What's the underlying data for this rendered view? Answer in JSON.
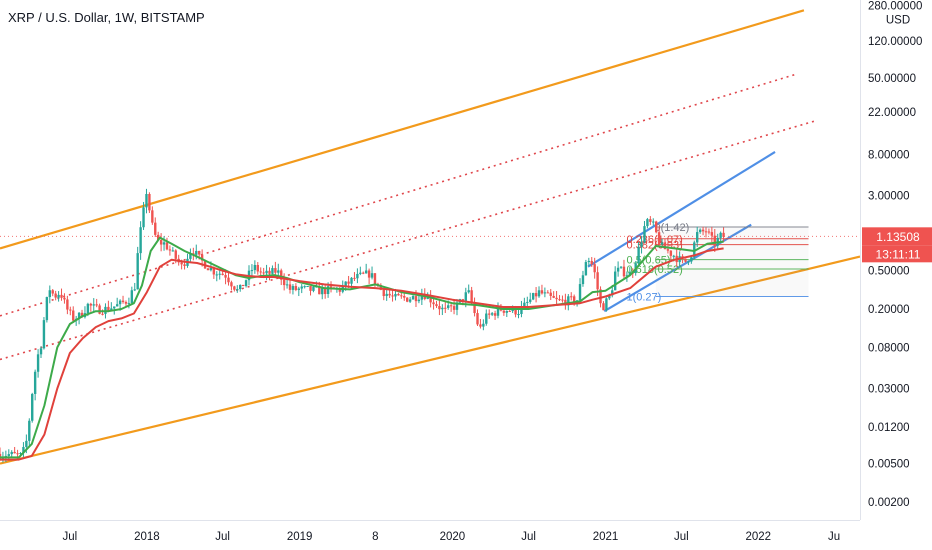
{
  "header": {
    "title": "XRP / U.S. Dollar, 1W, BITSTAMP"
  },
  "colors": {
    "channel": "#f29a1c",
    "dotted": "#e0474c",
    "ma_fast": "#3daa4a",
    "ma_slow": "#e0413b",
    "candle_up": "#26a69a",
    "candle_down": "#ef5350",
    "trend": "#4f8fe6",
    "price_tag": "#ef5350",
    "fib_gray": "#787b86",
    "fib_red": "#e0413b",
    "fib_green": "#4caf50",
    "fib_teal": "#089981",
    "fib_blue": "#4f8fe6"
  },
  "chart_data": {
    "type": "candlestick",
    "title": "XRP / U.S. Dollar, 1W, BITSTAMP",
    "y_scale": "log",
    "y_unit": "USD",
    "ylim": [
      0.0013,
      320
    ],
    "xlim": [
      "2017-01-15",
      "2022-09-01"
    ],
    "grid": false,
    "y_ticks": [
      "280.00000",
      "120.00000",
      "50.00000",
      "22.00000",
      "8.00000",
      "3.00000",
      "0.50000",
      "0.20000",
      "0.08000",
      "0.03000",
      "0.01200",
      "0.00500",
      "0.00200"
    ],
    "y_tick_values": [
      280,
      120,
      50,
      22,
      8,
      3,
      0.5,
      0.2,
      0.08,
      0.03,
      0.012,
      0.005,
      0.002
    ],
    "x_ticks": [
      {
        "label": "Jul",
        "date": "2017-07-01"
      },
      {
        "label": "2018",
        "date": "2018-01-01"
      },
      {
        "label": "Jul",
        "date": "2018-07-01"
      },
      {
        "label": "2019",
        "date": "2019-01-01"
      },
      {
        "label": "8",
        "date": "2019-07-01"
      },
      {
        "label": "2020",
        "date": "2020-01-01"
      },
      {
        "label": "Jul",
        "date": "2020-07-01"
      },
      {
        "label": "2021",
        "date": "2021-01-01"
      },
      {
        "label": "Jul",
        "date": "2021-07-01"
      },
      {
        "label": "2022",
        "date": "2022-01-01"
      },
      {
        "label": "Ju",
        "date": "2022-07-01"
      }
    ],
    "last_price": {
      "value": 1.13508,
      "label": "1.13508",
      "countdown": "13:11:11"
    },
    "price_path": [
      [
        "2017-01-15",
        0.0063
      ],
      [
        "2017-02-15",
        0.0062
      ],
      [
        "2017-03-15",
        0.006
      ],
      [
        "2017-03-28",
        0.009
      ],
      [
        "2017-04-10",
        0.03
      ],
      [
        "2017-04-20",
        0.06
      ],
      [
        "2017-05-01",
        0.09
      ],
      [
        "2017-05-10",
        0.2
      ],
      [
        "2017-05-20",
        0.33
      ],
      [
        "2017-06-01",
        0.27
      ],
      [
        "2017-06-15",
        0.3
      ],
      [
        "2017-07-01",
        0.2
      ],
      [
        "2017-07-15",
        0.16
      ],
      [
        "2017-08-01",
        0.17
      ],
      [
        "2017-08-20",
        0.22
      ],
      [
        "2017-09-10",
        0.2
      ],
      [
        "2017-10-01",
        0.2
      ],
      [
        "2017-11-01",
        0.22
      ],
      [
        "2017-11-25",
        0.25
      ],
      [
        "2017-12-10",
        0.35
      ],
      [
        "2017-12-20",
        1.0
      ],
      [
        "2018-01-01",
        2.2
      ],
      [
        "2018-01-07",
        3.3
      ],
      [
        "2018-01-20",
        1.5
      ],
      [
        "2018-02-01",
        1.0
      ],
      [
        "2018-02-20",
        0.95
      ],
      [
        "2018-03-15",
        0.7
      ],
      [
        "2018-04-01",
        0.55
      ],
      [
        "2018-04-25",
        0.85
      ],
      [
        "2018-05-15",
        0.65
      ],
      [
        "2018-06-15",
        0.5
      ],
      [
        "2018-07-15",
        0.45
      ],
      [
        "2018-08-15",
        0.3
      ],
      [
        "2018-09-20",
        0.55
      ],
      [
        "2018-10-15",
        0.45
      ],
      [
        "2018-11-15",
        0.5
      ],
      [
        "2018-12-15",
        0.32
      ],
      [
        "2019-01-15",
        0.32
      ],
      [
        "2019-03-01",
        0.31
      ],
      [
        "2019-04-15",
        0.32
      ],
      [
        "2019-05-20",
        0.42
      ],
      [
        "2019-06-25",
        0.47
      ],
      [
        "2019-07-20",
        0.32
      ],
      [
        "2019-08-20",
        0.26
      ],
      [
        "2019-10-01",
        0.26
      ],
      [
        "2019-11-01",
        0.29
      ],
      [
        "2019-12-20",
        0.19
      ],
      [
        "2020-01-20",
        0.22
      ],
      [
        "2020-02-15",
        0.3
      ],
      [
        "2020-03-13",
        0.12
      ],
      [
        "2020-03-25",
        0.16
      ],
      [
        "2020-05-01",
        0.2
      ],
      [
        "2020-06-15",
        0.19
      ],
      [
        "2020-08-01",
        0.3
      ],
      [
        "2020-09-15",
        0.24
      ],
      [
        "2020-11-01",
        0.25
      ],
      [
        "2020-11-24",
        0.7
      ],
      [
        "2020-12-10",
        0.55
      ],
      [
        "2020-12-29",
        0.2
      ],
      [
        "2021-01-20",
        0.28
      ],
      [
        "2021-02-01",
        0.5
      ],
      [
        "2021-02-15",
        0.5
      ],
      [
        "2021-03-10",
        0.45
      ],
      [
        "2021-04-05",
        1.1
      ],
      [
        "2021-04-14",
        1.6
      ],
      [
        "2021-05-01",
        1.5
      ],
      [
        "2021-05-20",
        0.9
      ],
      [
        "2021-06-15",
        0.75
      ],
      [
        "2021-07-15",
        0.6
      ],
      [
        "2021-08-01",
        0.75
      ],
      [
        "2021-08-15",
        1.2
      ],
      [
        "2021-09-05",
        1.3
      ],
      [
        "2021-09-25",
        0.95
      ],
      [
        "2021-10-10",
        1.13508
      ]
    ],
    "series": [
      {
        "kind": "moving_average",
        "points": [
          [
            "2017-01-15",
            0.0058
          ],
          [
            "2017-03-01",
            0.0058
          ],
          [
            "2017-04-01",
            0.008
          ],
          [
            "2017-05-01",
            0.02
          ],
          [
            "2017-06-01",
            0.08
          ],
          [
            "2017-07-01",
            0.14
          ],
          [
            "2017-08-01",
            0.17
          ],
          [
            "2017-09-01",
            0.19
          ],
          [
            "2017-10-01",
            0.19
          ],
          [
            "2017-11-01",
            0.2
          ],
          [
            "2017-12-01",
            0.23
          ],
          [
            "2017-12-20",
            0.35
          ],
          [
            "2018-01-10",
            0.8
          ],
          [
            "2018-02-01",
            1.1
          ],
          [
            "2018-03-01",
            0.95
          ],
          [
            "2018-04-01",
            0.8
          ],
          [
            "2018-05-01",
            0.7
          ],
          [
            "2018-06-01",
            0.6
          ],
          [
            "2018-07-01",
            0.52
          ],
          [
            "2018-08-01",
            0.45
          ],
          [
            "2018-09-01",
            0.42
          ],
          [
            "2018-10-01",
            0.44
          ],
          [
            "2018-11-01",
            0.45
          ],
          [
            "2018-12-01",
            0.42
          ],
          [
            "2019-01-01",
            0.38
          ],
          [
            "2019-03-01",
            0.33
          ],
          [
            "2019-05-01",
            0.32
          ],
          [
            "2019-07-01",
            0.36
          ],
          [
            "2019-09-01",
            0.3
          ],
          [
            "2019-11-01",
            0.27
          ],
          [
            "2020-01-01",
            0.23
          ],
          [
            "2020-03-01",
            0.22
          ],
          [
            "2020-05-01",
            0.2
          ],
          [
            "2020-07-01",
            0.2
          ],
          [
            "2020-09-01",
            0.22
          ],
          [
            "2020-11-01",
            0.24
          ],
          [
            "2020-12-01",
            0.3
          ],
          [
            "2021-01-01",
            0.31
          ],
          [
            "2021-03-01",
            0.45
          ],
          [
            "2021-05-01",
            0.9
          ],
          [
            "2021-06-15",
            0.85
          ],
          [
            "2021-08-01",
            0.8
          ],
          [
            "2021-09-01",
            0.95
          ],
          [
            "2021-10-10",
            1.0
          ]
        ]
      },
      {
        "kind": "moving_average",
        "points": [
          [
            "2017-01-15",
            0.0055
          ],
          [
            "2017-03-01",
            0.0055
          ],
          [
            "2017-04-01",
            0.006
          ],
          [
            "2017-05-01",
            0.01
          ],
          [
            "2017-06-01",
            0.03
          ],
          [
            "2017-07-01",
            0.07
          ],
          [
            "2017-08-01",
            0.1
          ],
          [
            "2017-09-01",
            0.13
          ],
          [
            "2017-10-01",
            0.15
          ],
          [
            "2017-11-01",
            0.16
          ],
          [
            "2017-12-01",
            0.18
          ],
          [
            "2018-01-01",
            0.3
          ],
          [
            "2018-02-01",
            0.55
          ],
          [
            "2018-03-01",
            0.65
          ],
          [
            "2018-04-01",
            0.62
          ],
          [
            "2018-05-01",
            0.6
          ],
          [
            "2018-06-01",
            0.55
          ],
          [
            "2018-07-01",
            0.5
          ],
          [
            "2018-08-01",
            0.46
          ],
          [
            "2018-09-01",
            0.44
          ],
          [
            "2018-10-01",
            0.43
          ],
          [
            "2018-11-01",
            0.43
          ],
          [
            "2018-12-01",
            0.41
          ],
          [
            "2019-01-01",
            0.39
          ],
          [
            "2019-03-01",
            0.36
          ],
          [
            "2019-05-01",
            0.34
          ],
          [
            "2019-07-01",
            0.33
          ],
          [
            "2019-09-01",
            0.31
          ],
          [
            "2019-11-01",
            0.28
          ],
          [
            "2020-01-01",
            0.25
          ],
          [
            "2020-03-01",
            0.23
          ],
          [
            "2020-05-01",
            0.21
          ],
          [
            "2020-07-01",
            0.21
          ],
          [
            "2020-09-01",
            0.22
          ],
          [
            "2020-11-01",
            0.23
          ],
          [
            "2020-12-01",
            0.25
          ],
          [
            "2021-01-01",
            0.27
          ],
          [
            "2021-03-01",
            0.33
          ],
          [
            "2021-05-01",
            0.55
          ],
          [
            "2021-06-15",
            0.65
          ],
          [
            "2021-08-01",
            0.72
          ],
          [
            "2021-09-01",
            0.8
          ],
          [
            "2021-10-10",
            0.85
          ]
        ]
      }
    ],
    "lines": [
      {
        "style": "solid",
        "color": "#f29a1c",
        "from": [
          "2017-01-15",
          0.85
        ],
        "to": [
          "2022-04-20",
          250
        ]
      },
      {
        "style": "solid",
        "color": "#f29a1c",
        "from": [
          "2017-01-15",
          0.005
        ],
        "to": [
          "2022-09-01",
          0.7
        ]
      },
      {
        "style": "dotted",
        "color": "#e0474c",
        "from": [
          "2017-01-15",
          0.17
        ],
        "to": [
          "2022-04-05",
          55
        ]
      },
      {
        "style": "dotted",
        "color": "#e0474c",
        "from": [
          "2017-01-15",
          0.06
        ],
        "to": [
          "2022-05-20",
          18
        ]
      },
      {
        "style": "solid",
        "color": "#4f8fe6",
        "from": [
          "2020-11-20",
          0.55
        ],
        "to": [
          "2022-02-10",
          8.5
        ]
      },
      {
        "style": "solid",
        "color": "#4f8fe6",
        "from": [
          "2020-12-29",
          0.19
        ],
        "to": [
          "2021-12-15",
          1.5
        ]
      }
    ],
    "fib_retracement": {
      "levels": [
        {
          "label": "0(1.42)",
          "value": 1.42,
          "color": "#787b86"
        },
        {
          "label": "0.236(1.07)",
          "value": 1.07,
          "color": "#e0413b"
        },
        {
          "label": "0.382(0.93)",
          "value": 0.93,
          "color": "#e0413b"
        },
        {
          "label": "0.5(0.65)",
          "value": 0.65,
          "color": "#4caf50"
        },
        {
          "label": "0.618(0.52)",
          "value": 0.52,
          "color": "#4caf50"
        },
        {
          "label": "1(0.27)",
          "value": 0.27,
          "color": "#4f8fe6"
        }
      ],
      "x_range": [
        "2021-05-01",
        "2022-05-01"
      ]
    }
  }
}
